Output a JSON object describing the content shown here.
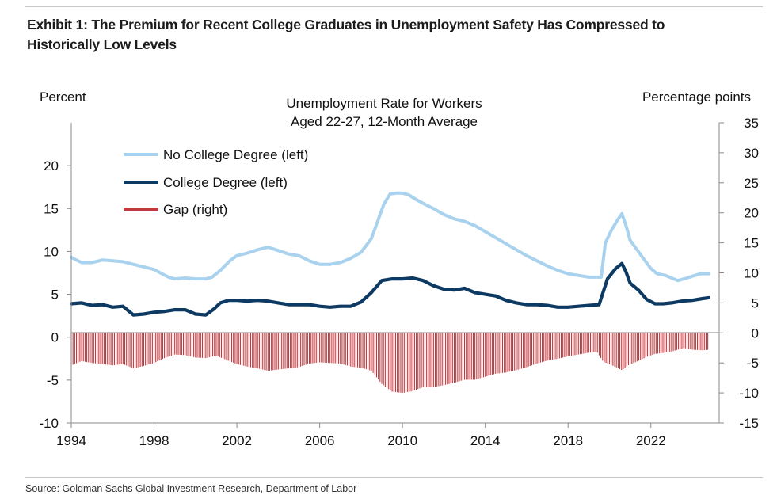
{
  "exhibit_title": "Exhibit 1: The Premium for Recent College Graduates in Unemployment Safety Has Compressed to Historically Low Levels",
  "source": "Source: Goldman Sachs Global Investment Research, Department of Labor",
  "colors": {
    "no_college": "#a9d2ee",
    "college": "#0d3a63",
    "gap": "#c0393f",
    "axis": "#8a8a8a"
  },
  "chart_data": {
    "type": "line",
    "title_lines": [
      "Unemployment Rate for Workers",
      "Aged 22-27, 12-Month Average"
    ],
    "left_axis_label": "Percent",
    "right_axis_label": "Percentage points",
    "left_ylim": [
      -10,
      25
    ],
    "left_ticks": [
      "-10",
      "-5",
      "0",
      "5",
      "10",
      "15",
      "20"
    ],
    "right_ylim": [
      -15,
      35
    ],
    "right_ticks": [
      "-15",
      "-10",
      "-5",
      "0",
      "5",
      "10",
      "15",
      "20",
      "25",
      "30",
      "35"
    ],
    "xlim": [
      1994,
      2025.3
    ],
    "x_ticks": [
      "1994",
      "1998",
      "2002",
      "2006",
      "2010",
      "2014",
      "2018",
      "2022"
    ],
    "legend": [
      "No College Degree (left)",
      "College Degree (left)",
      "Gap (right)"
    ],
    "series": [
      {
        "name": "No College Degree (left)",
        "axis": "left",
        "points": [
          [
            1994.0,
            9.3
          ],
          [
            1994.5,
            8.7
          ],
          [
            1995.0,
            8.7
          ],
          [
            1995.5,
            9.0
          ],
          [
            1996.0,
            8.9
          ],
          [
            1996.5,
            8.8
          ],
          [
            1997.0,
            8.5
          ],
          [
            1997.5,
            8.2
          ],
          [
            1998.0,
            7.9
          ],
          [
            1998.3,
            7.5
          ],
          [
            1998.7,
            7.0
          ],
          [
            1999.0,
            6.8
          ],
          [
            1999.5,
            6.9
          ],
          [
            2000.0,
            6.8
          ],
          [
            2000.5,
            6.8
          ],
          [
            2000.8,
            7.0
          ],
          [
            2001.2,
            7.8
          ],
          [
            2001.7,
            9.0
          ],
          [
            2002.0,
            9.5
          ],
          [
            2002.5,
            9.8
          ],
          [
            2003.0,
            10.2
          ],
          [
            2003.5,
            10.5
          ],
          [
            2004.0,
            10.1
          ],
          [
            2004.5,
            9.7
          ],
          [
            2005.0,
            9.5
          ],
          [
            2005.5,
            8.9
          ],
          [
            2006.0,
            8.5
          ],
          [
            2006.5,
            8.5
          ],
          [
            2007.0,
            8.7
          ],
          [
            2007.5,
            9.2
          ],
          [
            2008.0,
            9.9
          ],
          [
            2008.5,
            11.5
          ],
          [
            2008.8,
            13.5
          ],
          [
            2009.1,
            15.5
          ],
          [
            2009.4,
            16.7
          ],
          [
            2009.7,
            16.8
          ],
          [
            2010.0,
            16.8
          ],
          [
            2010.3,
            16.6
          ],
          [
            2010.7,
            16.0
          ],
          [
            2011.0,
            15.6
          ],
          [
            2011.5,
            15.0
          ],
          [
            2012.0,
            14.3
          ],
          [
            2012.5,
            13.8
          ],
          [
            2013.0,
            13.5
          ],
          [
            2013.5,
            13.0
          ],
          [
            2014.0,
            12.3
          ],
          [
            2014.5,
            11.6
          ],
          [
            2015.0,
            10.9
          ],
          [
            2015.5,
            10.2
          ],
          [
            2016.0,
            9.5
          ],
          [
            2016.5,
            8.9
          ],
          [
            2017.0,
            8.3
          ],
          [
            2017.5,
            7.8
          ],
          [
            2018.0,
            7.4
          ],
          [
            2018.5,
            7.2
          ],
          [
            2019.0,
            7.0
          ],
          [
            2019.4,
            7.0
          ],
          [
            2019.6,
            7.0
          ],
          [
            2019.8,
            11.0
          ],
          [
            2020.1,
            12.5
          ],
          [
            2020.4,
            13.7
          ],
          [
            2020.6,
            14.4
          ],
          [
            2020.8,
            13.0
          ],
          [
            2021.0,
            11.3
          ],
          [
            2021.3,
            10.3
          ],
          [
            2021.6,
            9.3
          ],
          [
            2022.0,
            8.0
          ],
          [
            2022.3,
            7.4
          ],
          [
            2022.7,
            7.2
          ],
          [
            2023.0,
            6.9
          ],
          [
            2023.3,
            6.6
          ],
          [
            2023.6,
            6.8
          ],
          [
            2024.0,
            7.1
          ],
          [
            2024.4,
            7.4
          ],
          [
            2024.8,
            7.4
          ]
        ]
      },
      {
        "name": "College Degree (left)",
        "axis": "left",
        "points": [
          [
            1994.0,
            3.9
          ],
          [
            1994.5,
            4.0
          ],
          [
            1995.0,
            3.7
          ],
          [
            1995.5,
            3.8
          ],
          [
            1996.0,
            3.5
          ],
          [
            1996.5,
            3.6
          ],
          [
            1997.0,
            2.6
          ],
          [
            1997.5,
            2.7
          ],
          [
            1998.0,
            2.9
          ],
          [
            1998.5,
            3.0
          ],
          [
            1999.0,
            3.2
          ],
          [
            1999.5,
            3.2
          ],
          [
            2000.0,
            2.7
          ],
          [
            2000.5,
            2.6
          ],
          [
            2000.9,
            3.3
          ],
          [
            2001.2,
            4.0
          ],
          [
            2001.6,
            4.3
          ],
          [
            2002.0,
            4.3
          ],
          [
            2002.5,
            4.2
          ],
          [
            2003.0,
            4.3
          ],
          [
            2003.5,
            4.2
          ],
          [
            2004.0,
            4.0
          ],
          [
            2004.5,
            3.8
          ],
          [
            2005.0,
            3.8
          ],
          [
            2005.5,
            3.8
          ],
          [
            2006.0,
            3.6
          ],
          [
            2006.5,
            3.5
          ],
          [
            2007.0,
            3.6
          ],
          [
            2007.5,
            3.6
          ],
          [
            2008.0,
            4.1
          ],
          [
            2008.5,
            5.2
          ],
          [
            2009.0,
            6.6
          ],
          [
            2009.5,
            6.8
          ],
          [
            2010.0,
            6.8
          ],
          [
            2010.5,
            6.9
          ],
          [
            2011.0,
            6.6
          ],
          [
            2011.5,
            6.0
          ],
          [
            2012.0,
            5.6
          ],
          [
            2012.5,
            5.5
          ],
          [
            2013.0,
            5.7
          ],
          [
            2013.5,
            5.2
          ],
          [
            2014.0,
            5.0
          ],
          [
            2014.5,
            4.8
          ],
          [
            2015.0,
            4.3
          ],
          [
            2015.5,
            4.0
          ],
          [
            2016.0,
            3.8
          ],
          [
            2016.5,
            3.8
          ],
          [
            2017.0,
            3.7
          ],
          [
            2017.5,
            3.5
          ],
          [
            2018.0,
            3.5
          ],
          [
            2018.5,
            3.6
          ],
          [
            2019.0,
            3.7
          ],
          [
            2019.5,
            3.8
          ],
          [
            2019.9,
            6.8
          ],
          [
            2020.3,
            8.0
          ],
          [
            2020.6,
            8.6
          ],
          [
            2020.8,
            7.6
          ],
          [
            2021.0,
            6.3
          ],
          [
            2021.4,
            5.5
          ],
          [
            2021.8,
            4.4
          ],
          [
            2022.2,
            3.9
          ],
          [
            2022.6,
            3.9
          ],
          [
            2023.0,
            4.0
          ],
          [
            2023.5,
            4.2
          ],
          [
            2024.0,
            4.3
          ],
          [
            2024.5,
            4.5
          ],
          [
            2024.8,
            4.6
          ]
        ]
      },
      {
        "name": "Gap (right)",
        "axis": "right",
        "kind": "bar",
        "points": [
          [
            1994.0,
            -5.4
          ],
          [
            1994.5,
            -4.7
          ],
          [
            1995.0,
            -5.0
          ],
          [
            1995.5,
            -5.2
          ],
          [
            1996.0,
            -5.4
          ],
          [
            1996.5,
            -5.2
          ],
          [
            1997.0,
            -5.9
          ],
          [
            1997.5,
            -5.5
          ],
          [
            1998.0,
            -5.0
          ],
          [
            1998.5,
            -4.2
          ],
          [
            1999.0,
            -3.6
          ],
          [
            1999.5,
            -3.7
          ],
          [
            2000.0,
            -4.1
          ],
          [
            2000.5,
            -4.2
          ],
          [
            2001.0,
            -3.8
          ],
          [
            2001.5,
            -4.5
          ],
          [
            2002.0,
            -5.2
          ],
          [
            2002.5,
            -5.6
          ],
          [
            2003.0,
            -5.9
          ],
          [
            2003.5,
            -6.3
          ],
          [
            2004.0,
            -6.1
          ],
          [
            2004.5,
            -5.9
          ],
          [
            2005.0,
            -5.7
          ],
          [
            2005.5,
            -5.1
          ],
          [
            2006.0,
            -4.9
          ],
          [
            2006.5,
            -5.0
          ],
          [
            2007.0,
            -5.1
          ],
          [
            2007.5,
            -5.6
          ],
          [
            2008.0,
            -5.8
          ],
          [
            2008.5,
            -6.3
          ],
          [
            2009.0,
            -8.5
          ],
          [
            2009.5,
            -9.8
          ],
          [
            2010.0,
            -10.0
          ],
          [
            2010.5,
            -9.7
          ],
          [
            2011.0,
            -9.0
          ],
          [
            2011.5,
            -9.0
          ],
          [
            2012.0,
            -8.7
          ],
          [
            2012.5,
            -8.3
          ],
          [
            2013.0,
            -7.8
          ],
          [
            2013.5,
            -7.8
          ],
          [
            2014.0,
            -7.3
          ],
          [
            2014.5,
            -6.8
          ],
          [
            2015.0,
            -6.6
          ],
          [
            2015.5,
            -6.2
          ],
          [
            2016.0,
            -5.7
          ],
          [
            2016.5,
            -5.1
          ],
          [
            2017.0,
            -4.6
          ],
          [
            2017.5,
            -4.3
          ],
          [
            2018.0,
            -3.9
          ],
          [
            2018.5,
            -3.6
          ],
          [
            2019.0,
            -3.3
          ],
          [
            2019.4,
            -3.2
          ],
          [
            2019.7,
            -4.8
          ],
          [
            2020.2,
            -5.5
          ],
          [
            2020.6,
            -6.2
          ],
          [
            2020.9,
            -5.4
          ],
          [
            2021.3,
            -4.8
          ],
          [
            2021.8,
            -4.0
          ],
          [
            2022.2,
            -3.5
          ],
          [
            2022.7,
            -3.3
          ],
          [
            2023.1,
            -3.0
          ],
          [
            2023.6,
            -2.5
          ],
          [
            2024.0,
            -2.8
          ],
          [
            2024.5,
            -2.9
          ],
          [
            2024.8,
            -2.8
          ]
        ]
      }
    ]
  }
}
